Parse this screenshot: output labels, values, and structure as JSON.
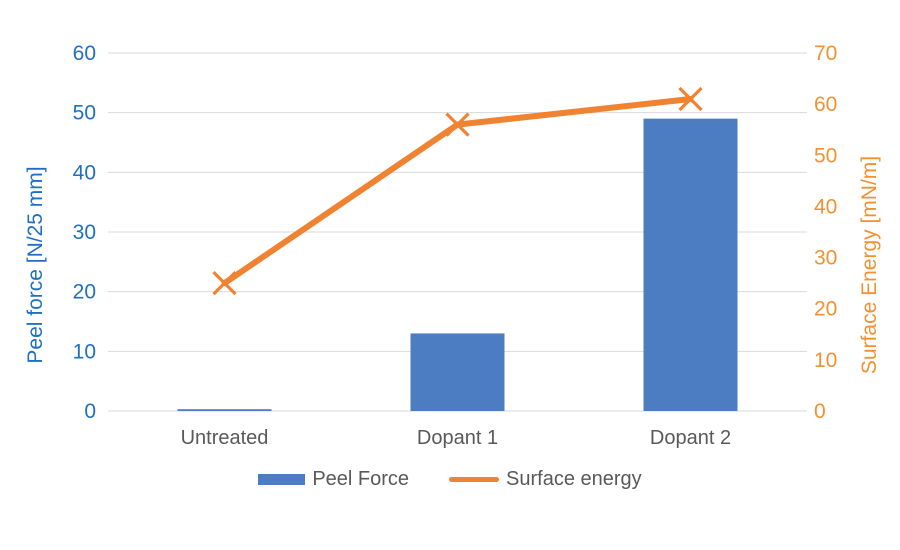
{
  "chart_data": {
    "type": "combo",
    "categories": [
      "Untreated",
      "Dopant 1",
      "Dopant 2"
    ],
    "series": [
      {
        "name": "Peel Force",
        "type": "bar",
        "axis": "left",
        "values": [
          0.3,
          13,
          49
        ],
        "color": "#4C7CC1"
      },
      {
        "name": "Surface energy",
        "type": "line",
        "axis": "right",
        "values": [
          25,
          56,
          61
        ],
        "color": "#EF8332",
        "marker": "x"
      }
    ],
    "left_axis": {
      "label": "Peel force [N/25 mm]",
      "min": 0,
      "max": 60,
      "step": 10,
      "color": "#1F6FC4"
    },
    "right_axis": {
      "label": "Surface Energy [mN/m]",
      "min": 0,
      "max": 70,
      "step": 10,
      "color": "#F39132"
    },
    "grid": true,
    "gridline_color": "#D9D9D9",
    "category_label_color": "#595959",
    "legend_position": "bottom",
    "legend_text_color": "#595959",
    "background": "#FFFFFF",
    "title": ""
  }
}
